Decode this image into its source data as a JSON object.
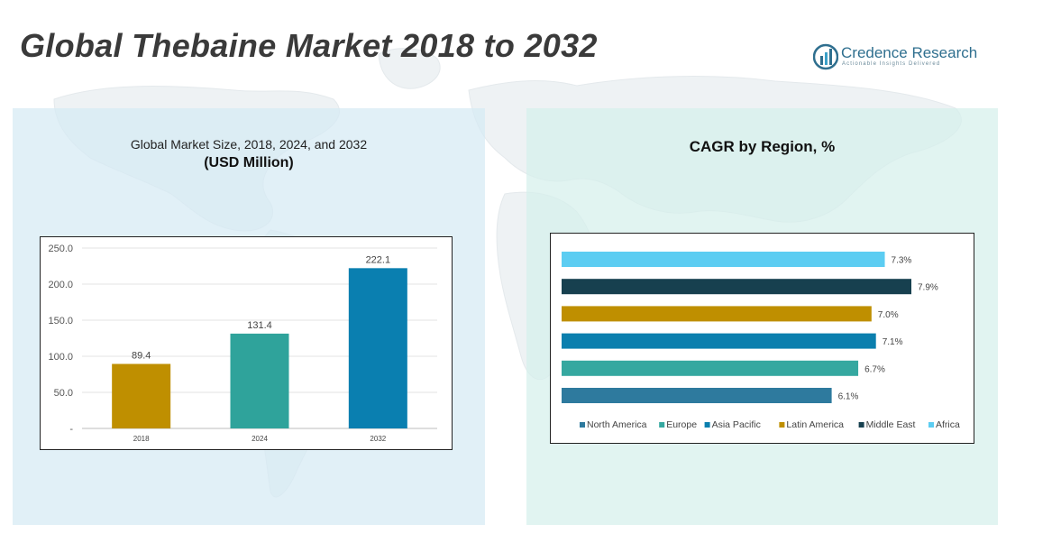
{
  "page": {
    "title": "Global Thebaine Market 2018 to 2032",
    "logo": {
      "name_part1": "Credence",
      "name_part2": " Research",
      "tagline": "Actionable Insights Delivered"
    }
  },
  "left_panel": {
    "subtitle": "Global Market Size, 2018, 2024, and 2032",
    "unit_label": "(USD Million)"
  },
  "right_panel": {
    "title": "CAGR by Region, %"
  },
  "chart_data": [
    {
      "type": "bar",
      "title": "Global Market Size, 2018, 2024, and 2032",
      "ylabel": "(USD Million)",
      "categories": [
        "2018",
        "2024",
        "2032"
      ],
      "values": [
        89.4,
        131.4,
        222.1
      ],
      "value_labels": [
        "89.4",
        "131.4",
        "222.1"
      ],
      "colors": [
        "#bf8f00",
        "#2fa39b",
        "#0a7fb0"
      ],
      "ylim": [
        0,
        250
      ],
      "yticks": [
        {
          "value": 0,
          "label": "-"
        },
        {
          "value": 50,
          "label": "50.0"
        },
        {
          "value": 100,
          "label": "100.0"
        },
        {
          "value": 150,
          "label": "150.0"
        },
        {
          "value": 200,
          "label": "200.0"
        },
        {
          "value": 250,
          "label": "250.0"
        }
      ],
      "grid": true
    },
    {
      "type": "bar",
      "orientation": "horizontal",
      "title": "CAGR by Region, %",
      "categories": [
        "North America",
        "Europe",
        "Asia Pacific",
        "Latin America",
        "Middle East",
        "Africa"
      ],
      "values": [
        6.1,
        6.7,
        7.1,
        7.0,
        7.9,
        7.3
      ],
      "value_labels": [
        "6.1%",
        "6.7%",
        "7.1%",
        "7.0%",
        "7.9%",
        "7.3%"
      ],
      "colors": [
        "#2e7a9e",
        "#35a8a0",
        "#0b7fae",
        "#bf8f00",
        "#17404f",
        "#5ccdf2"
      ],
      "xlim": [
        0,
        7.9
      ],
      "legend": "bottom",
      "grid": false
    }
  ]
}
